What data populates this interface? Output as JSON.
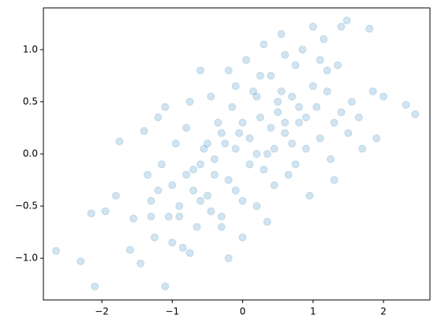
{
  "chart_data": {
    "type": "scatter",
    "x": [
      -2.65,
      -2.3,
      -2.1,
      -2.15,
      -1.95,
      -1.8,
      -1.75,
      -1.6,
      -1.55,
      -1.45,
      -1.4,
      -1.35,
      -1.3,
      -1.25,
      -1.2,
      -1.15,
      -1.1,
      -1.1,
      -1.05,
      -1.0,
      -0.95,
      -0.9,
      -0.85,
      -0.8,
      -0.75,
      -0.7,
      -0.65,
      -0.6,
      -0.55,
      -0.5,
      -0.45,
      -0.4,
      -0.35,
      -0.3,
      -0.25,
      -0.2,
      -0.15,
      -0.1,
      -0.05,
      0.0,
      0.05,
      0.1,
      0.15,
      0.2,
      0.25,
      0.3,
      0.35,
      0.4,
      0.45,
      0.5,
      0.55,
      0.6,
      0.65,
      0.7,
      0.75,
      0.8,
      0.85,
      0.9,
      0.95,
      1.0,
      1.05,
      1.1,
      1.15,
      1.2,
      1.25,
      1.3,
      1.35,
      1.4,
      1.48,
      1.55,
      1.65,
      1.8,
      1.85,
      1.9,
      2.0,
      2.32,
      2.45,
      1.7,
      1.5,
      1.3,
      -0.6,
      -0.5,
      -0.4,
      -0.3,
      -0.2,
      -0.1,
      0.0,
      0.1,
      0.2,
      0.3,
      0.4,
      0.5,
      0.6,
      0.7,
      0.8,
      0.9,
      1.0,
      -0.7,
      -0.8,
      -0.9,
      -1.2,
      -1.3,
      -0.6,
      -0.3,
      0.2,
      0.6,
      1.1,
      1.4,
      -0.45,
      0.35,
      -0.2,
      0.0,
      0.45,
      0.75,
      1.2,
      -1.0,
      -0.75,
      -0.1,
      0.25,
      0.55
    ],
    "series": [
      {
        "color": "#1f77b4",
        "values": [
          -0.93,
          -1.03,
          -1.27,
          -0.57,
          -0.55,
          -0.4,
          0.12,
          -0.92,
          -0.62,
          -1.05,
          0.22,
          -0.2,
          -0.45,
          -0.8,
          0.35,
          -0.1,
          -1.27,
          0.45,
          -0.6,
          -0.3,
          0.1,
          -0.5,
          -0.9,
          0.25,
          0.5,
          -0.15,
          -0.7,
          0.8,
          0.05,
          -0.4,
          0.55,
          -0.2,
          0.3,
          -0.6,
          0.1,
          -1.0,
          0.45,
          -0.35,
          0.2,
          -0.8,
          0.9,
          -0.1,
          0.6,
          -0.5,
          0.35,
          1.05,
          0.0,
          0.75,
          -0.3,
          0.4,
          1.15,
          0.2,
          -0.2,
          0.55,
          0.85,
          0.3,
          1.0,
          0.05,
          -0.4,
          1.22,
          0.45,
          0.15,
          1.1,
          0.6,
          -0.05,
          0.3,
          0.85,
          1.22,
          1.28,
          0.5,
          0.35,
          1.2,
          0.6,
          0.15,
          0.55,
          0.47,
          0.38,
          0.05,
          0.2,
          -0.25,
          -0.1,
          0.1,
          -0.05,
          0.2,
          -0.25,
          0.05,
          0.3,
          0.15,
          0.0,
          -0.15,
          0.25,
          0.5,
          0.3,
          0.1,
          0.45,
          0.35,
          0.65,
          -0.35,
          -0.2,
          -0.6,
          -0.35,
          -0.6,
          -0.45,
          -0.7,
          0.55,
          0.95,
          0.9,
          0.4,
          -0.55,
          -0.65,
          0.8,
          -0.45,
          0.05,
          -0.1,
          0.8,
          -0.85,
          -0.95,
          0.65,
          0.75,
          0.6
        ]
      }
    ],
    "opacity": 0.2,
    "xlim": [
      -2.83,
      2.66
    ],
    "ylim": [
      -1.4,
      1.4
    ],
    "xticks": [
      {
        "value": -2,
        "label": "−2"
      },
      {
        "value": -1,
        "label": "−1"
      },
      0,
      1,
      2
    ],
    "yticks": [
      {
        "value": -1,
        "label": "−1.0"
      },
      {
        "value": -0.5,
        "label": "−0.5"
      },
      {
        "value": 0,
        "label": "0.0"
      },
      {
        "value": 0.5,
        "label": "0.5"
      },
      {
        "value": 1,
        "label": "1.0"
      }
    ]
  }
}
